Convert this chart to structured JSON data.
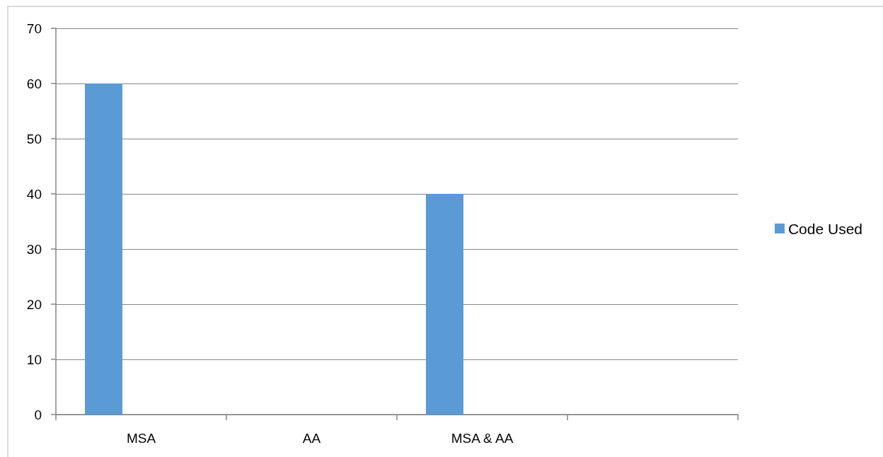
{
  "chart_data": {
    "type": "bar",
    "categories": [
      "MSA",
      "AA",
      "MSA & AA",
      null
    ],
    "series": [
      {
        "name": "Code Used",
        "color": "#5b9bd5",
        "values": [
          60,
          0,
          40,
          null
        ]
      }
    ],
    "ylim": [
      0,
      70
    ],
    "yticks": [
      0,
      10,
      20,
      30,
      40,
      50,
      60,
      70
    ],
    "grid": "y",
    "legend": "right"
  }
}
